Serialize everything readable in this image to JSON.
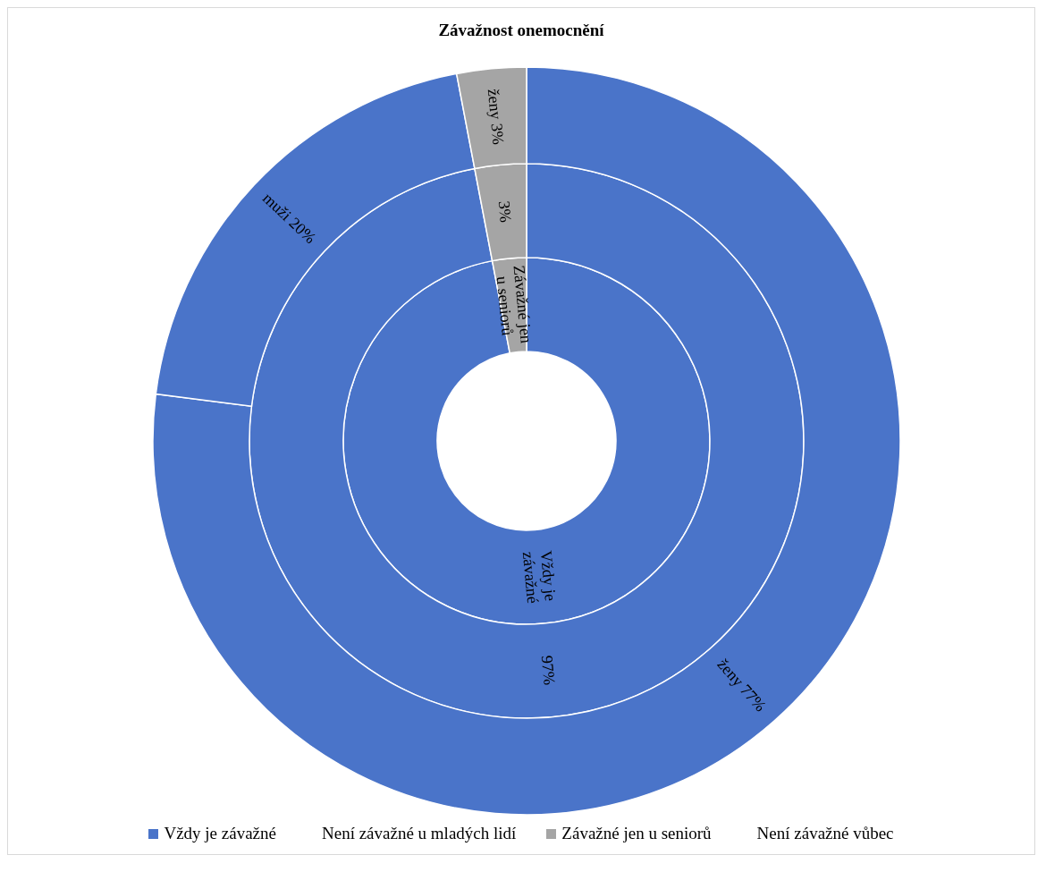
{
  "chart_data": [
    {
      "type": "donut",
      "title": "Závažnost onemocnění",
      "categories": [
        "Vždy je závažné",
        "Není závažné u mladých lidí",
        "Závažné jen u seniorů",
        "Není závažné vůbec"
      ],
      "values": [
        97,
        0,
        3,
        0
      ],
      "colors": [
        "#4a74c9",
        null,
        "#a5a5a5",
        null
      ],
      "legend": "bottom"
    },
    {
      "type": "donut",
      "categories": [
        null,
        null
      ],
      "values": [
        97,
        3
      ],
      "colors": [
        "#4a74c9",
        "#a5a5a5"
      ],
      "value_labels": [
        "97%",
        "3%"
      ]
    },
    {
      "type": "donut",
      "categories": [
        "ženy",
        "muži",
        "ženy"
      ],
      "values": [
        77,
        20,
        3
      ],
      "colors": [
        "#4a74c9",
        "#4a74c9",
        "#a5a5a5"
      ],
      "value_labels": [
        "77%",
        "20%",
        "3%"
      ]
    }
  ]
}
